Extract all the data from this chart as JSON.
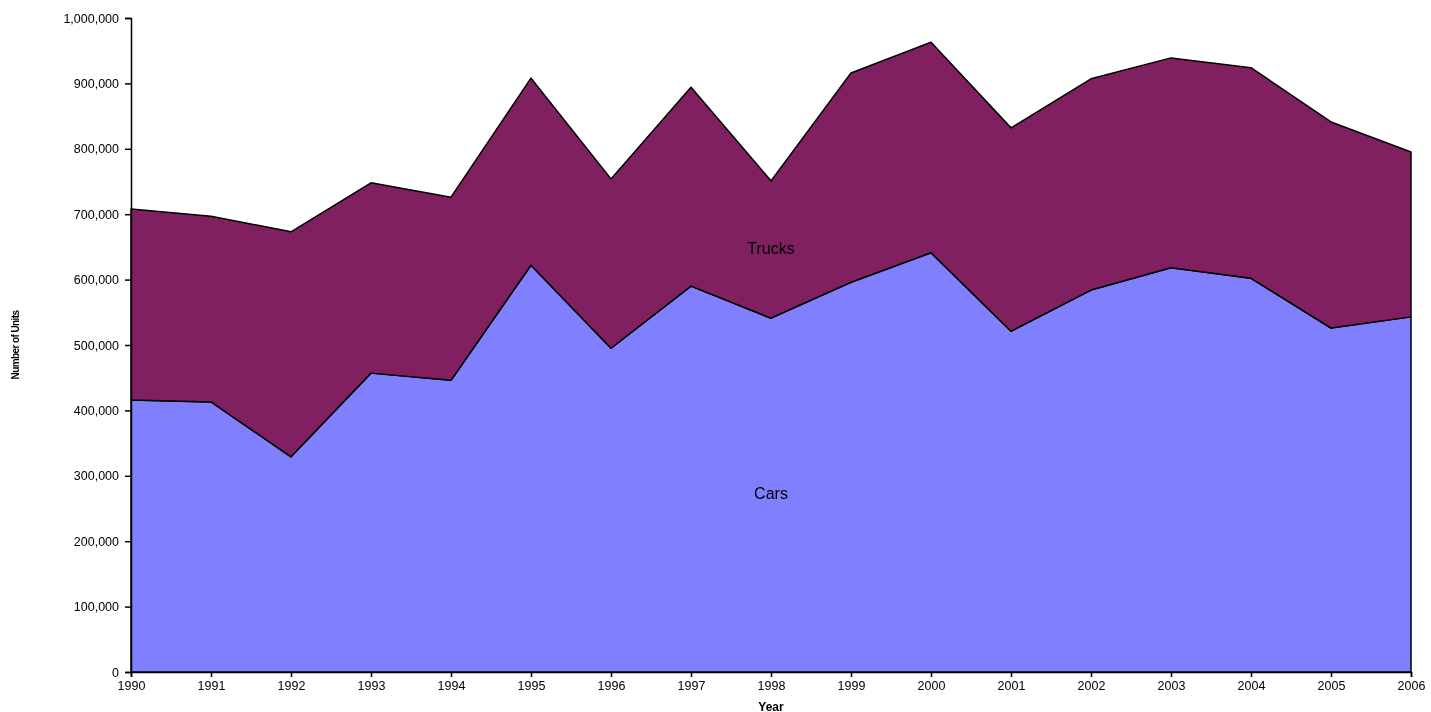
{
  "chart_data": {
    "type": "area",
    "stacked": true,
    "xlabel": "Year",
    "ylabel": "Number of Units",
    "x": [
      1990,
      1991,
      1992,
      1993,
      1994,
      1995,
      1996,
      1997,
      1998,
      1999,
      2000,
      2001,
      2002,
      2003,
      2004,
      2005,
      2006
    ],
    "xlim": [
      1990,
      2006
    ],
    "xticks": [
      1990,
      1991,
      1992,
      1993,
      1994,
      1995,
      1996,
      1997,
      1998,
      1999,
      2000,
      2001,
      2002,
      2003,
      2004,
      2005,
      2006
    ],
    "ylim": [
      0,
      1000000
    ],
    "yticks": [
      0,
      {
        "value": 100000,
        "label": "100,000"
      },
      {
        "value": 200000,
        "label": "200,000"
      },
      {
        "value": 300000,
        "label": "300,000"
      },
      {
        "value": 400000,
        "label": "400,000"
      },
      {
        "value": 500000,
        "label": "500,000"
      },
      {
        "value": 600000,
        "label": "600,000"
      },
      {
        "value": 700000,
        "label": "700,000"
      },
      {
        "value": 800000,
        "label": "800,000"
      },
      {
        "value": 900000,
        "label": "900,000"
      },
      {
        "value": 1000000,
        "label": "1,000,000"
      }
    ],
    "series": [
      {
        "name": "Cars",
        "color": "#8080ff",
        "values": [
          416000,
          413000,
          329000,
          457000,
          446000,
          622000,
          495000,
          590000,
          541000,
          596000,
          641000,
          521000,
          584000,
          618000,
          602000,
          526000,
          543000
        ]
      },
      {
        "name": "Trucks",
        "color": "#802060",
        "values": [
          292000,
          284000,
          344000,
          291000,
          280000,
          286000,
          259000,
          304000,
          210000,
          320000,
          322000,
          311000,
          323000,
          321000,
          322000,
          315000,
          252000
        ]
      }
    ]
  }
}
